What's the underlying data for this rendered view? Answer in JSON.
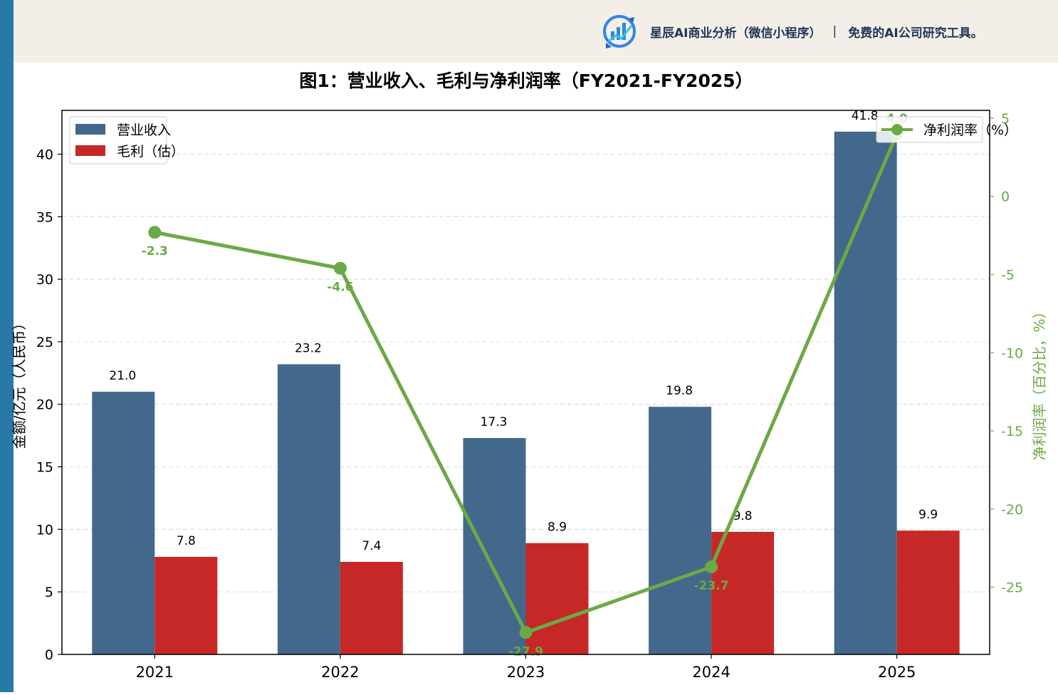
{
  "brand": {
    "name": "星辰AI商业分析（微信小程序）",
    "separator": "|",
    "tagline": "免费的AI公司研究工具。"
  },
  "colors": {
    "bar_revenue": "#42688c",
    "bar_secondary": "#c62828",
    "line": "#6aaa45",
    "left_bar": "#2878a8",
    "header_bg": "#f3efe8"
  },
  "chart_data": {
    "type": "bar",
    "title": "图1：营业收入、毛利与净利润率（FY2021-FY2025）",
    "categories": [
      "2021",
      "2022",
      "2023",
      "2024",
      "2025"
    ],
    "ylabel": "金额/亿元（人民币）",
    "y2label": "净利润率（百分比，%）",
    "ylim": [
      0,
      43.5
    ],
    "y2lim": [
      -29.3,
      5.5
    ],
    "yticks": [
      "0",
      "5",
      "10",
      "15",
      "20",
      "25",
      "30",
      "35",
      "40"
    ],
    "y2ticks": [
      "-25",
      "-20",
      "-15",
      "-10",
      "-5",
      "0",
      "5"
    ],
    "grid": true,
    "series": [
      {
        "name": "营业收入",
        "kind": "bar",
        "axis": "left",
        "values": [
          21.0,
          23.2,
          17.3,
          19.8,
          41.8
        ],
        "labels": [
          "21.0",
          "23.2",
          "17.3",
          "19.8",
          "41.8"
        ]
      },
      {
        "name": "毛利（估）",
        "kind": "bar",
        "axis": "left",
        "values": [
          7.8,
          7.4,
          8.9,
          9.8,
          9.9
        ],
        "labels": [
          "7.8",
          "7.4",
          "8.9",
          "9.8",
          "9.9"
        ]
      },
      {
        "name": "净利润率（%）",
        "kind": "line",
        "axis": "right",
        "values": [
          -2.3,
          -4.6,
          -27.9,
          -23.7,
          4.0
        ],
        "labels": [
          "-2.3",
          "-4.6",
          "-27.9",
          "-23.7",
          "4.0"
        ]
      }
    ],
    "legend_left": "top-left",
    "legend_right": "top-right"
  }
}
